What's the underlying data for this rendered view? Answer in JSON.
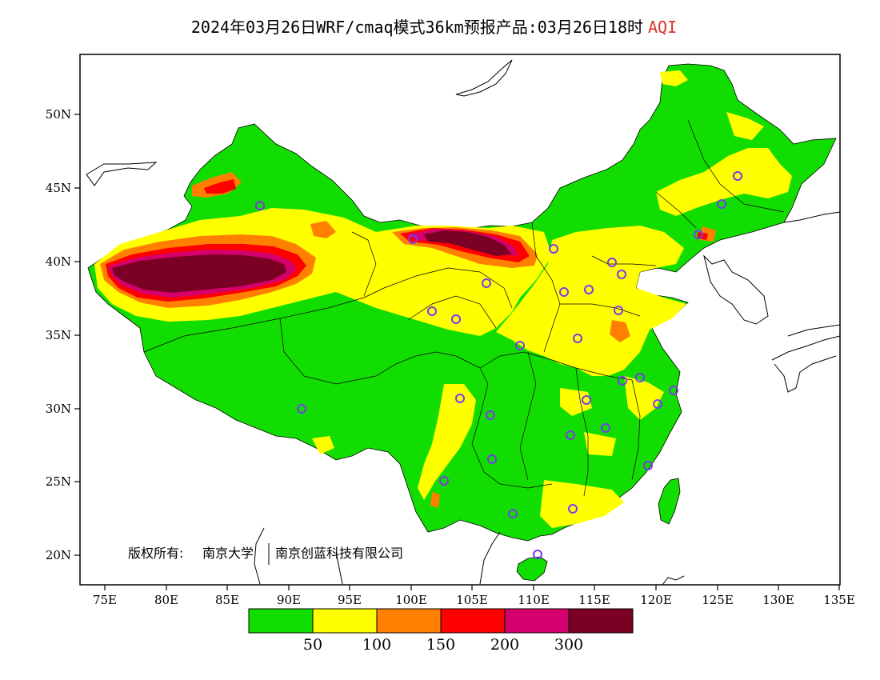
{
  "title": {
    "main": "2024年03月26日WRF/cmaq模式36km预报产品:03月26日18时",
    "product": "AQI"
  },
  "axes": {
    "y_ticks": [
      "50N",
      "45N",
      "40N",
      "35N",
      "30N",
      "25N",
      "20N"
    ],
    "x_ticks": [
      "75E",
      "80E",
      "85E",
      "90E",
      "95E",
      "100E",
      "105E",
      "110E",
      "115E",
      "120E",
      "125E",
      "130E",
      "135E"
    ]
  },
  "copyright": {
    "prefix": "版权所有:",
    "org1": "南京大学",
    "org2": "南京创蓝科技有限公司"
  },
  "legend": {
    "colors": [
      "#11dd00",
      "#ffff00",
      "#ff8000",
      "#ff0000",
      "#d4006e",
      "#7a0024"
    ],
    "labels": [
      "50",
      "100",
      "150",
      "200",
      "300"
    ]
  }
}
